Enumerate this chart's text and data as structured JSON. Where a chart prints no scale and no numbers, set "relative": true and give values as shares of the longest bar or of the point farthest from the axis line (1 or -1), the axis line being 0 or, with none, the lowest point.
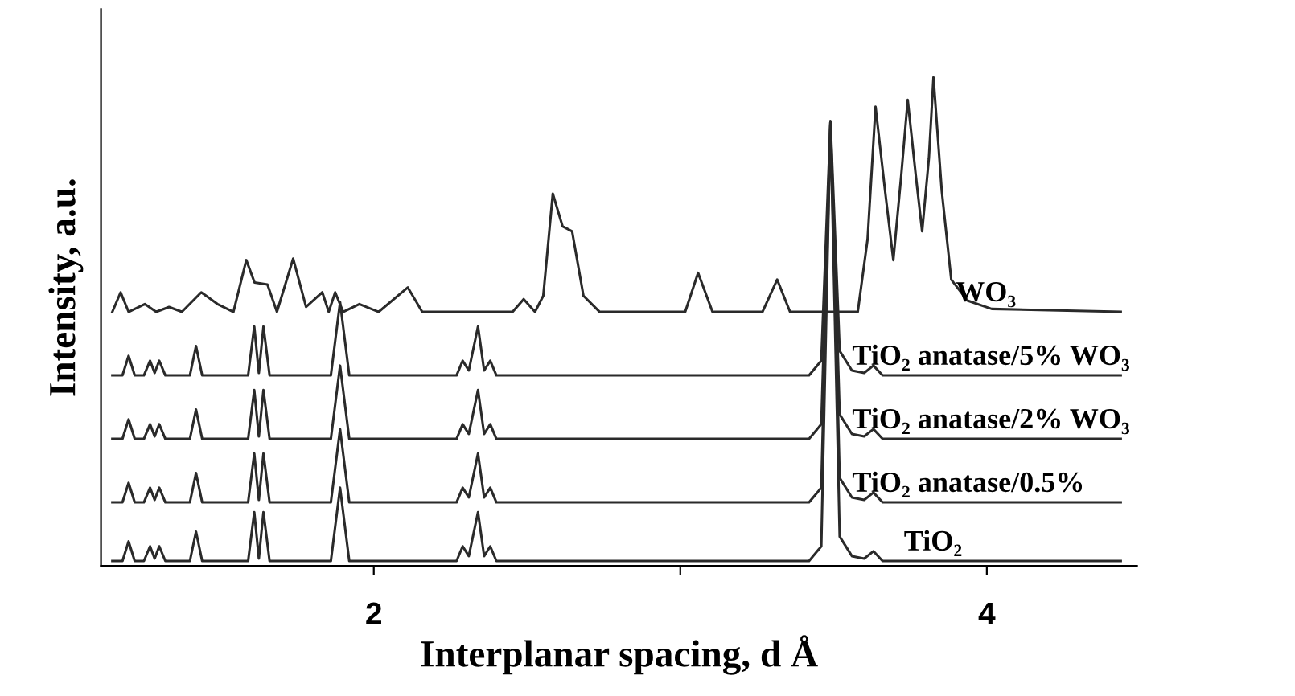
{
  "chart_data": {
    "type": "line",
    "relative": true,
    "xlabel": "Interplanar spacing, d Å",
    "ylabel": "Intensity, a.u.",
    "xlim": [
      1.11,
      4.49
    ],
    "xticks": [
      2,
      {
        "value": 3,
        "label": null
      },
      4
    ],
    "tick_labels": "x",
    "grid": false,
    "marker": "none",
    "line_style": "solid",
    "series": [
      {
        "name": "WO₃",
        "color": "#2a2a2a",
        "x": [
          1.147,
          1.174,
          1.2,
          1.253,
          1.29,
          1.332,
          1.374,
          1.437,
          1.49,
          1.542,
          1.584,
          1.611,
          1.653,
          1.684,
          1.737,
          1.779,
          1.832,
          1.853,
          1.874,
          1.9,
          1.953,
          2.016,
          2.111,
          2.158,
          2.453,
          2.489,
          2.526,
          2.553,
          2.584,
          2.616,
          2.647,
          2.684,
          2.737,
          3.016,
          3.058,
          3.105,
          3.268,
          3.316,
          3.358,
          3.579,
          3.611,
          3.637,
          3.668,
          3.695,
          3.721,
          3.742,
          3.768,
          3.789,
          3.811,
          3.826,
          3.853,
          3.884,
          3.937,
          4.016,
          4.437
        ],
        "values": [
          0.52,
          0.56,
          0.52,
          0.536,
          0.52,
          0.53,
          0.52,
          0.56,
          0.536,
          0.52,
          0.626,
          0.58,
          0.576,
          0.52,
          0.629,
          0.53,
          0.56,
          0.52,
          0.56,
          0.52,
          0.536,
          0.52,
          0.57,
          0.52,
          0.52,
          0.546,
          0.52,
          0.553,
          0.762,
          0.695,
          0.685,
          0.553,
          0.52,
          0.52,
          0.6,
          0.52,
          0.52,
          0.586,
          0.52,
          0.52,
          0.669,
          0.94,
          0.768,
          0.626,
          0.801,
          0.954,
          0.801,
          0.685,
          0.834,
          1.0,
          0.768,
          0.586,
          0.543,
          0.526,
          0.52
        ]
      },
      {
        "name": "TiO₂ anatase/5% WO₃",
        "color": "#2a2a2a",
        "x": [
          1.147,
          1.18,
          1.2,
          1.22,
          1.25,
          1.27,
          1.285,
          1.3,
          1.32,
          1.4,
          1.42,
          1.44,
          1.59,
          1.61,
          1.625,
          1.64,
          1.66,
          1.86,
          1.89,
          1.92,
          2.27,
          2.29,
          2.31,
          2.34,
          2.36,
          2.38,
          2.4,
          3.42,
          3.46,
          3.49,
          3.52,
          3.56,
          3.6,
          3.63,
          3.66,
          4.437
        ],
        "values": [
          0.39,
          0.39,
          0.43,
          0.39,
          0.39,
          0.42,
          0.395,
          0.42,
          0.39,
          0.39,
          0.45,
          0.39,
          0.39,
          0.49,
          0.395,
          0.49,
          0.39,
          0.39,
          0.54,
          0.39,
          0.39,
          0.42,
          0.4,
          0.49,
          0.4,
          0.42,
          0.39,
          0.39,
          0.42,
          0.91,
          0.44,
          0.4,
          0.395,
          0.41,
          0.39,
          0.39
        ]
      },
      {
        "name": "TiO₂ anatase/2% WO₃",
        "color": "#2a2a2a",
        "x": [
          1.147,
          1.18,
          1.2,
          1.22,
          1.25,
          1.27,
          1.285,
          1.3,
          1.32,
          1.4,
          1.42,
          1.44,
          1.59,
          1.61,
          1.625,
          1.64,
          1.66,
          1.86,
          1.89,
          1.92,
          2.27,
          2.29,
          2.31,
          2.34,
          2.36,
          2.38,
          2.4,
          3.42,
          3.46,
          3.49,
          3.52,
          3.56,
          3.6,
          3.63,
          3.66,
          4.437
        ],
        "values": [
          0.26,
          0.26,
          0.3,
          0.26,
          0.26,
          0.29,
          0.265,
          0.29,
          0.26,
          0.26,
          0.32,
          0.26,
          0.26,
          0.36,
          0.265,
          0.36,
          0.26,
          0.26,
          0.41,
          0.26,
          0.26,
          0.29,
          0.27,
          0.36,
          0.27,
          0.29,
          0.26,
          0.26,
          0.29,
          0.91,
          0.31,
          0.27,
          0.265,
          0.28,
          0.26,
          0.26
        ]
      },
      {
        "name": "TiO₂ anatase/0.5%",
        "color": "#2a2a2a",
        "x": [
          1.147,
          1.18,
          1.2,
          1.22,
          1.25,
          1.27,
          1.285,
          1.3,
          1.32,
          1.4,
          1.42,
          1.44,
          1.59,
          1.61,
          1.625,
          1.64,
          1.66,
          1.86,
          1.89,
          1.92,
          2.27,
          2.29,
          2.31,
          2.34,
          2.36,
          2.38,
          2.4,
          3.42,
          3.46,
          3.49,
          3.52,
          3.56,
          3.6,
          3.63,
          3.66,
          4.437
        ],
        "values": [
          0.13,
          0.13,
          0.17,
          0.13,
          0.13,
          0.16,
          0.135,
          0.16,
          0.13,
          0.13,
          0.19,
          0.13,
          0.13,
          0.23,
          0.135,
          0.23,
          0.13,
          0.13,
          0.28,
          0.13,
          0.13,
          0.16,
          0.14,
          0.23,
          0.14,
          0.16,
          0.13,
          0.13,
          0.16,
          0.91,
          0.18,
          0.14,
          0.135,
          0.15,
          0.13,
          0.13
        ]
      },
      {
        "name": "TiO₂",
        "color": "#2a2a2a",
        "x": [
          1.147,
          1.18,
          1.2,
          1.22,
          1.25,
          1.27,
          1.285,
          1.3,
          1.32,
          1.4,
          1.42,
          1.44,
          1.59,
          1.61,
          1.625,
          1.64,
          1.66,
          1.86,
          1.89,
          1.92,
          2.27,
          2.29,
          2.31,
          2.34,
          2.36,
          2.38,
          2.4,
          3.42,
          3.46,
          3.49,
          3.52,
          3.56,
          3.6,
          3.63,
          3.66,
          4.437
        ],
        "values": [
          0.01,
          0.01,
          0.05,
          0.01,
          0.01,
          0.04,
          0.015,
          0.04,
          0.01,
          0.01,
          0.07,
          0.01,
          0.01,
          0.11,
          0.015,
          0.11,
          0.01,
          0.01,
          0.16,
          0.01,
          0.01,
          0.04,
          0.02,
          0.11,
          0.02,
          0.04,
          0.01,
          0.01,
          0.04,
          0.91,
          0.06,
          0.02,
          0.015,
          0.03,
          0.01,
          0.01
        ]
      }
    ]
  }
}
